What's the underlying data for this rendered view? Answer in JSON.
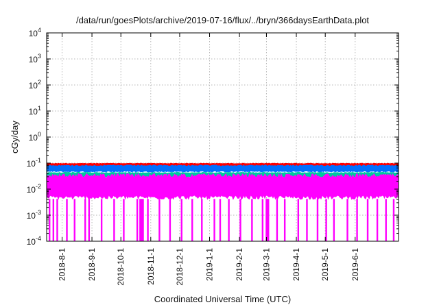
{
  "chart_data": {
    "type": "area",
    "title": "/data/run/goesPlots/archive/2019-07-16/flux/../bryn/366daysEarthData.plot",
    "xlabel": "Coordinated Universal Time (UTC)",
    "ylabel": "cGy/day",
    "yscale": "log",
    "ylim": [
      0.0001,
      10000
    ],
    "xlim": [
      "2018-07-16",
      "2019-07-16"
    ],
    "grid": true,
    "legend": "none",
    "y_ticks": [
      {
        "base": "10",
        "exp": "-4",
        "value": 0.0001
      },
      {
        "base": "10",
        "exp": "-3",
        "value": 0.001
      },
      {
        "base": "10",
        "exp": "-2",
        "value": 0.01
      },
      {
        "base": "10",
        "exp": "-1",
        "value": 0.1
      },
      {
        "base": "10",
        "exp": "0",
        "value": 1
      },
      {
        "base": "10",
        "exp": "1",
        "value": 10
      },
      {
        "base": "10",
        "exp": "2",
        "value": 100
      },
      {
        "base": "10",
        "exp": "3",
        "value": 1000
      },
      {
        "base": "10",
        "exp": "4",
        "value": 10000
      }
    ],
    "x_ticks": [
      "2018-8-1",
      "2018-9-1",
      "2018-10-1",
      "2018-11-1",
      "2018-12-1",
      "2019-1-1",
      "2019-2-1",
      "2019-3-1",
      "2019-4-1",
      "2019-5-1",
      "2019-6-1"
    ],
    "series": [
      {
        "color": "#ff0000",
        "y_range": [
          0.07,
          0.1
        ]
      },
      {
        "color": "#0070ff",
        "y_range": [
          0.045,
          0.085
        ]
      },
      {
        "color": "#00c8a0",
        "y_range": [
          0.028,
          0.045
        ]
      },
      {
        "color": "#ff00ff",
        "y_range": [
          0.004,
          0.04
        ],
        "dropouts_to": 0.0001,
        "dropout_dates": [
          "2018-07-19",
          "2018-07-23",
          "2018-07-27",
          "2018-08-06",
          "2018-08-14",
          "2018-08-25",
          "2018-08-29",
          "2018-09-11",
          "2018-09-24",
          "2018-10-04",
          "2018-10-18",
          "2018-10-21",
          "2018-10-22",
          "2018-10-23",
          "2018-10-24",
          "2018-10-29",
          "2018-11-10",
          "2018-11-21",
          "2018-12-03",
          "2018-12-14",
          "2018-12-24",
          "2019-01-06",
          "2019-01-12",
          "2019-01-21",
          "2019-02-02",
          "2019-02-14",
          "2019-02-25",
          "2019-03-01",
          "2019-03-02",
          "2019-03-03",
          "2019-03-12",
          "2019-03-20",
          "2019-04-03",
          "2019-04-12",
          "2019-04-23",
          "2019-05-02",
          "2019-05-10",
          "2019-05-24",
          "2019-06-03",
          "2019-06-14",
          "2019-06-24",
          "2019-07-03",
          "2019-07-11"
        ]
      }
    ]
  }
}
